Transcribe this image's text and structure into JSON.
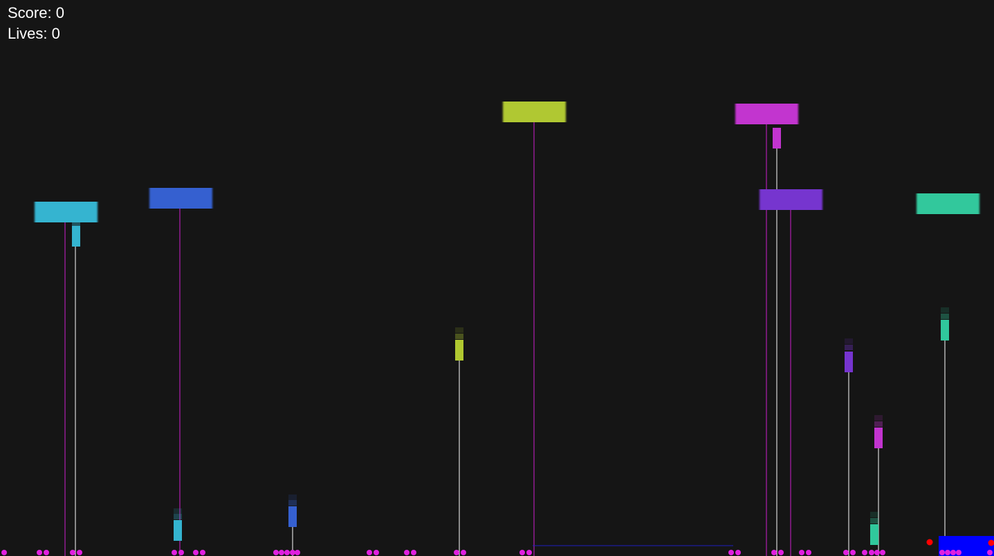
{
  "hud": {
    "score_label": "Score: 0",
    "lives_label": "Lives: 0",
    "score": 0,
    "lives": 0
  },
  "colors": {
    "background": "#151515",
    "tether_line": "#d020d0",
    "beam_line": "#ffffff",
    "ground_dots": "#e020e0",
    "player": "#0000ff",
    "enemy_dot": "#ff0000",
    "block_cyan": "#34b4d0",
    "block_blue": "#3560d0",
    "block_lime": "#b0c830",
    "block_magenta": "#c234cf",
    "block_purple": "#7634cf",
    "block_teal": "#30c89c"
  },
  "entities": {
    "invaders": [
      "cyan",
      "blue",
      "lime",
      "magenta",
      "purple",
      "teal"
    ],
    "projectiles": [
      "cyan",
      "cyan",
      "blue",
      "lime",
      "magenta",
      "purple",
      "magenta",
      "teal",
      "teal"
    ],
    "player": "blue-paddle",
    "hazards": [
      "red-dot",
      "red-dot"
    ]
  }
}
